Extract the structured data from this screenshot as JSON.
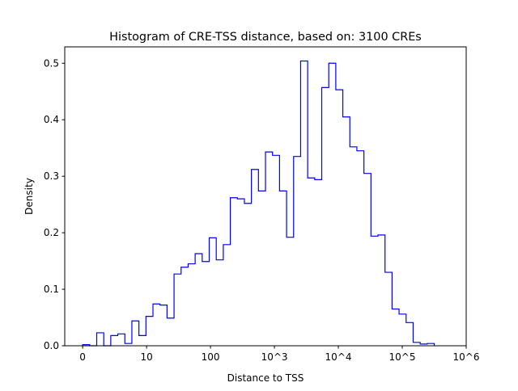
{
  "chart_data": {
    "type": "histogram",
    "title": "Histogram of CRE-TSS distance, based on: 3100 CREs",
    "xlabel": "Distance to TSS",
    "ylabel": "Density",
    "xscale": "symlog",
    "linthresh": 10,
    "x_tick_values": [
      0,
      10,
      100,
      1000,
      10000,
      100000,
      1000000
    ],
    "x_tick_labels": [
      "0",
      "10",
      "100",
      "10^3",
      "10^4",
      "10^5",
      "10^6"
    ],
    "y_tick_values": [
      0.0,
      0.1,
      0.2,
      0.3,
      0.4,
      0.5
    ],
    "y_tick_labels": [
      "0.0",
      "0.1",
      "0.2",
      "0.3",
      "0.4",
      "0.5"
    ],
    "ylim": [
      0,
      0.529
    ],
    "xlim": [
      -2.8,
      1000000
    ],
    "bin_range": [
      0,
      316228
    ],
    "line_color": "#0000ff",
    "values": [
      0.002,
      0.0,
      0.023,
      0.0,
      0.018,
      0.021,
      0.004,
      0.044,
      0.018,
      0.052,
      0.074,
      0.072,
      0.049,
      0.127,
      0.139,
      0.145,
      0.163,
      0.149,
      0.191,
      0.152,
      0.179,
      0.262,
      0.26,
      0.252,
      0.312,
      0.274,
      0.343,
      0.337,
      0.274,
      0.192,
      0.335,
      0.504,
      0.297,
      0.294,
      0.457,
      0.5,
      0.453,
      0.405,
      0.352,
      0.345,
      0.305,
      0.194,
      0.196,
      0.13,
      0.065,
      0.056,
      0.041,
      0.006,
      0.003,
      0.004
    ]
  }
}
